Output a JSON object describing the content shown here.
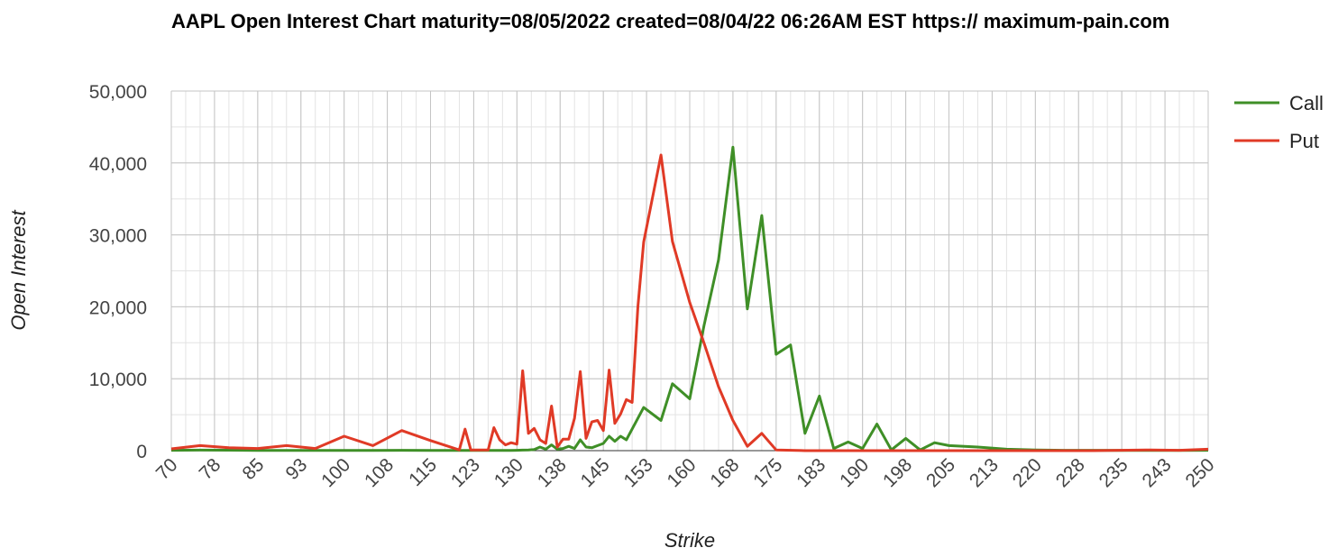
{
  "chart_data": {
    "type": "line",
    "title": "AAPL Open Interest Chart maturity=08/05/2022 created=08/04/22 06:26AM EST https:// maximum-pain.com",
    "xlabel": "Strike",
    "ylabel": "Open Interest",
    "xlim": [
      70,
      250
    ],
    "ylim": [
      0,
      50000
    ],
    "x_tick_labels": [
      "70",
      "78",
      "85",
      "93",
      "100",
      "108",
      "115",
      "123",
      "130",
      "138",
      "145",
      "153",
      "160",
      "168",
      "175",
      "183",
      "190",
      "198",
      "205",
      "213",
      "220",
      "228",
      "235",
      "243",
      "250"
    ],
    "y_tick_labels": [
      "0",
      "10,000",
      "20,000",
      "30,000",
      "40,000",
      "50,000"
    ],
    "y_tick_values": [
      0,
      10000,
      20000,
      30000,
      40000,
      50000
    ],
    "grid": true,
    "legend_position": "top-right",
    "series": [
      {
        "name": "Call",
        "color": "#3f8f27",
        "points": [
          [
            70,
            50
          ],
          [
            75,
            80
          ],
          [
            80,
            60
          ],
          [
            85,
            40
          ],
          [
            90,
            40
          ],
          [
            95,
            40
          ],
          [
            100,
            30
          ],
          [
            105,
            40
          ],
          [
            110,
            50
          ],
          [
            115,
            40
          ],
          [
            120,
            30
          ],
          [
            121,
            20
          ],
          [
            122,
            20
          ],
          [
            125,
            30
          ],
          [
            127,
            40
          ],
          [
            128,
            30
          ],
          [
            129,
            40
          ],
          [
            130,
            50
          ],
          [
            131,
            80
          ],
          [
            132,
            100
          ],
          [
            133,
            150
          ],
          [
            134,
            500
          ],
          [
            135,
            200
          ],
          [
            136,
            800
          ],
          [
            137,
            200
          ],
          [
            138,
            300
          ],
          [
            139,
            600
          ],
          [
            140,
            300
          ],
          [
            141,
            1500
          ],
          [
            142,
            500
          ],
          [
            143,
            400
          ],
          [
            144,
            700
          ],
          [
            145,
            1000
          ],
          [
            146,
            2000
          ],
          [
            147,
            1300
          ],
          [
            148,
            2000
          ],
          [
            149,
            1500
          ],
          [
            150,
            3000
          ],
          [
            152,
            6000
          ],
          [
            155,
            4200
          ],
          [
            157,
            9300
          ],
          [
            160,
            7200
          ],
          [
            162.5,
            17500
          ],
          [
            165,
            26500
          ],
          [
            167.5,
            42200
          ],
          [
            170,
            19700
          ],
          [
            172.5,
            32700
          ],
          [
            175,
            13400
          ],
          [
            177.5,
            14700
          ],
          [
            180,
            2400
          ],
          [
            182.5,
            7600
          ],
          [
            185,
            300
          ],
          [
            187.5,
            1200
          ],
          [
            190,
            300
          ],
          [
            192.5,
            3700
          ],
          [
            195,
            100
          ],
          [
            197.5,
            1700
          ],
          [
            200,
            100
          ],
          [
            202.5,
            1100
          ],
          [
            205,
            700
          ],
          [
            210,
            500
          ],
          [
            215,
            200
          ],
          [
            220,
            100
          ],
          [
            225,
            50
          ],
          [
            230,
            50
          ],
          [
            235,
            30
          ],
          [
            240,
            30
          ],
          [
            245,
            30
          ],
          [
            250,
            50
          ]
        ]
      },
      {
        "name": "Put",
        "color": "#e03a26",
        "points": [
          [
            70,
            250
          ],
          [
            75,
            700
          ],
          [
            80,
            400
          ],
          [
            85,
            300
          ],
          [
            90,
            700
          ],
          [
            95,
            300
          ],
          [
            100,
            2000
          ],
          [
            105,
            700
          ],
          [
            110,
            2800
          ],
          [
            115,
            1400
          ],
          [
            120,
            100
          ],
          [
            121,
            3000
          ],
          [
            122,
            100
          ],
          [
            125,
            100
          ],
          [
            126,
            3200
          ],
          [
            127,
            1500
          ],
          [
            128,
            800
          ],
          [
            129,
            1100
          ],
          [
            130,
            900
          ],
          [
            131,
            11100
          ],
          [
            132,
            2400
          ],
          [
            133,
            3100
          ],
          [
            134,
            1500
          ],
          [
            135,
            1000
          ],
          [
            136,
            6200
          ],
          [
            137,
            500
          ],
          [
            138,
            1600
          ],
          [
            139,
            1600
          ],
          [
            140,
            4500
          ],
          [
            141,
            11000
          ],
          [
            142,
            1700
          ],
          [
            143,
            4000
          ],
          [
            144,
            4200
          ],
          [
            145,
            2800
          ],
          [
            146,
            11200
          ],
          [
            147,
            3800
          ],
          [
            148,
            5100
          ],
          [
            149,
            7100
          ],
          [
            150,
            6700
          ],
          [
            151,
            20000
          ],
          [
            152,
            29000
          ],
          [
            155,
            41100
          ],
          [
            157,
            29100
          ],
          [
            160,
            20600
          ],
          [
            162.5,
            14900
          ],
          [
            165,
            8900
          ],
          [
            167.5,
            4200
          ],
          [
            170,
            600
          ],
          [
            172.5,
            2400
          ],
          [
            175,
            100
          ],
          [
            180,
            0
          ],
          [
            185,
            0
          ],
          [
            190,
            0
          ],
          [
            195,
            0
          ],
          [
            200,
            0
          ],
          [
            205,
            0
          ],
          [
            210,
            0
          ],
          [
            220,
            0
          ],
          [
            230,
            0
          ],
          [
            240,
            100
          ],
          [
            245,
            50
          ],
          [
            250,
            200
          ]
        ]
      }
    ]
  }
}
